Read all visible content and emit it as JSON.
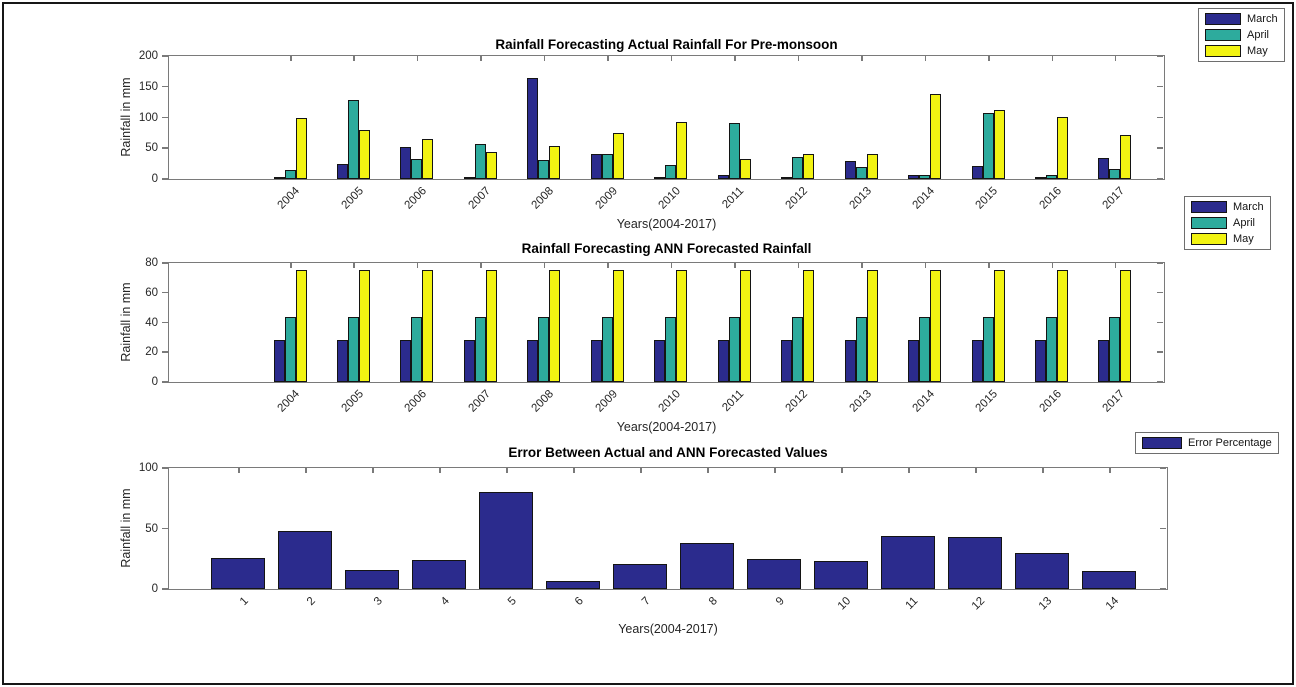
{
  "figure": {
    "background": "#ffffff",
    "border_color": "#161616"
  },
  "palette": {
    "march": "#2b2b8d",
    "april": "#2dab9d",
    "may": "#f2f312",
    "error": "#2b2b8d",
    "axis": "#7a7a7a",
    "tick_label": "#262626",
    "title": "#000000"
  },
  "chart_data": [
    {
      "type": "bar",
      "title": "Rainfall Forecasting Actual Rainfall For Pre-monsoon",
      "xlabel": "Years(2004-2017)",
      "ylabel": "Rainfall in mm",
      "ylim": [
        0,
        200
      ],
      "yticks": [
        0,
        50,
        100,
        150,
        200
      ],
      "grid": false,
      "legend_location": "outside top-right",
      "categories": [
        "2004",
        "2005",
        "2006",
        "2007",
        "2008",
        "2009",
        "2010",
        "2011",
        "2012",
        "2013",
        "2014",
        "2015",
        "2016",
        "2017"
      ],
      "series": [
        {
          "name": "March",
          "color": "#2b2b8d",
          "values": [
            3,
            24,
            52,
            2,
            164,
            40,
            2,
            7,
            2,
            29,
            7,
            21,
            3,
            34
          ]
        },
        {
          "name": "April",
          "color": "#2dab9d",
          "values": [
            15,
            128,
            32,
            57,
            31,
            40,
            22,
            91,
            35,
            20,
            7,
            108,
            6,
            16
          ]
        },
        {
          "name": "May",
          "color": "#f2f312",
          "values": [
            100,
            80,
            65,
            44,
            53,
            75,
            92,
            33,
            40,
            41,
            139,
            112,
            101,
            72
          ]
        }
      ]
    },
    {
      "type": "bar",
      "title": "Rainfall Forecasting ANN Forecasted Rainfall",
      "xlabel": "Years(2004-2017)",
      "ylabel": "Rainfall in mm",
      "ylim": [
        0,
        80
      ],
      "yticks": [
        0,
        20,
        40,
        60,
        80
      ],
      "grid": false,
      "legend_location": "outside top-right",
      "categories": [
        "2004",
        "2005",
        "2006",
        "2007",
        "2008",
        "2009",
        "2010",
        "2011",
        "2012",
        "2013",
        "2014",
        "2015",
        "2016",
        "2017"
      ],
      "series": [
        {
          "name": "March",
          "color": "#2b2b8d",
          "values": [
            28,
            28,
            28,
            28,
            28,
            28,
            28,
            28,
            28,
            28,
            28,
            28,
            28,
            28
          ]
        },
        {
          "name": "April",
          "color": "#2dab9d",
          "values": [
            44,
            44,
            44,
            44,
            44,
            44,
            44,
            44,
            44,
            44,
            44,
            44,
            44,
            44
          ]
        },
        {
          "name": "May",
          "color": "#f2f312",
          "values": [
            75,
            75,
            75,
            75,
            75,
            75,
            75,
            75,
            75,
            75,
            75,
            75,
            75,
            75
          ]
        }
      ]
    },
    {
      "type": "bar",
      "title": "Error Between Actual and ANN Forecasted Values",
      "xlabel": "Years(2004-2017)",
      "ylabel": "Rainfall in mm",
      "ylim": [
        0,
        100
      ],
      "yticks": [
        0,
        50,
        100
      ],
      "grid": false,
      "legend_location": "outside top-right",
      "categories": [
        "1",
        "2",
        "3",
        "4",
        "5",
        "6",
        "7",
        "8",
        "9",
        "10",
        "11",
        "12",
        "13",
        "14"
      ],
      "series": [
        {
          "name": "Error Percentage",
          "color": "#2b2b8d",
          "values": [
            26,
            48,
            16,
            24,
            80,
            7,
            21,
            38,
            25,
            23,
            44,
            43,
            30,
            15
          ]
        }
      ]
    }
  ]
}
